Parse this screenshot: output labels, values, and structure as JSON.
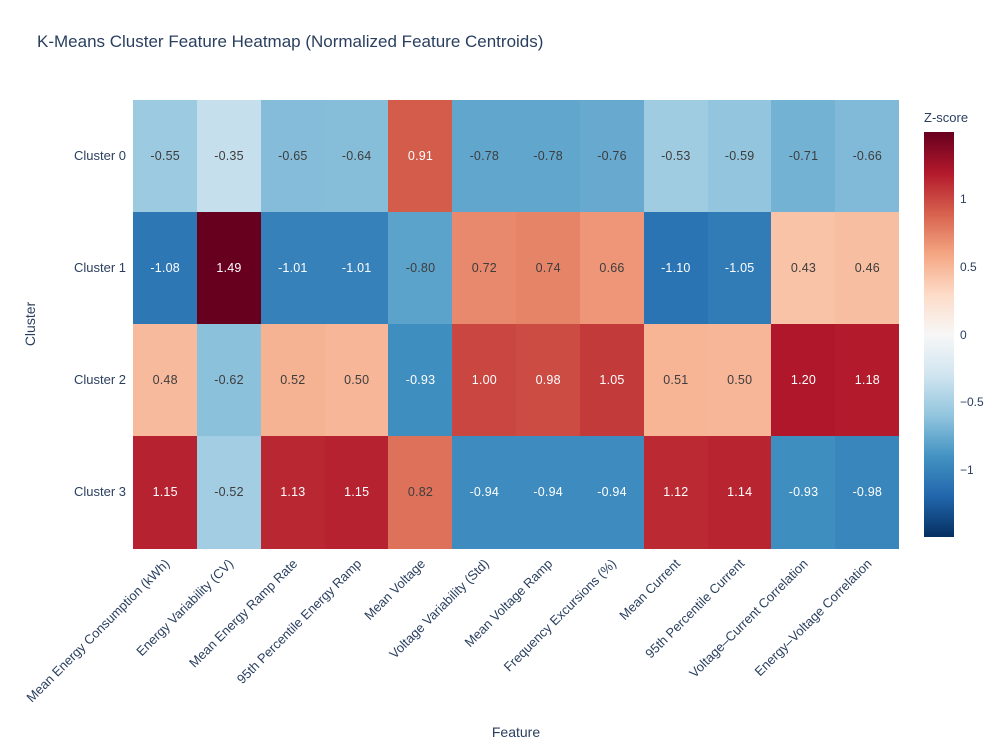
{
  "title": "K-Means Cluster Feature Heatmap (Normalized Feature Centroids)",
  "chart_data": {
    "type": "heatmap",
    "title": "K-Means Cluster Feature Heatmap (Normalized Feature Centroids)",
    "xlabel": "Feature",
    "ylabel": "Cluster",
    "x_categories": [
      "Mean Energy Consumption (kWh)",
      "Energy Variability (CV)",
      "Mean Energy Ramp Rate",
      "95th Percentile Energy Ramp",
      "Mean Voltage",
      "Voltage Variability (Std)",
      "Mean Voltage Ramp",
      "Frequency Excursions (%)",
      "Mean Current",
      "95th Percentile Current",
      "Voltage–Current Correlation",
      "Energy–Voltage Correlation"
    ],
    "y_categories": [
      "Cluster 0",
      "Cluster 1",
      "Cluster 2",
      "Cluster 3"
    ],
    "values": [
      [
        -0.55,
        -0.35,
        -0.65,
        -0.64,
        0.91,
        -0.78,
        -0.78,
        -0.76,
        -0.53,
        -0.59,
        -0.71,
        -0.66
      ],
      [
        -1.08,
        1.49,
        -1.01,
        -1.01,
        -0.8,
        0.72,
        0.74,
        0.66,
        -1.1,
        -1.05,
        0.43,
        0.46
      ],
      [
        0.48,
        -0.62,
        0.52,
        0.5,
        -0.93,
        1.0,
        0.98,
        1.05,
        0.51,
        0.5,
        1.2,
        1.18
      ],
      [
        1.15,
        -0.52,
        1.13,
        1.15,
        0.82,
        -0.94,
        -0.94,
        -0.94,
        1.12,
        1.14,
        -0.93,
        -0.98
      ]
    ],
    "value_format": ".2f",
    "zmin": -1.49,
    "zmax": 1.49,
    "colorscale_name": "RdBu_r",
    "colorscale_stops": [
      "#053061",
      "#2166ac",
      "#4393c3",
      "#92c5de",
      "#d1e5f0",
      "#f7f7f7",
      "#fddbc7",
      "#f4a582",
      "#d6604d",
      "#b2182b",
      "#67001f"
    ],
    "colorbar": {
      "title": "Z-score",
      "tick_labels": [
        "1",
        "0.5",
        "0",
        "−0.5",
        "−1"
      ],
      "tick_values": [
        1,
        0.5,
        0,
        -0.5,
        -1
      ]
    },
    "legend_position": "right",
    "grid": false
  },
  "colors": {
    "text": "#2a3f5f",
    "cell_text_dark": "#3d3d3d",
    "cell_text_light": "#ffffff",
    "background": "#ffffff"
  }
}
